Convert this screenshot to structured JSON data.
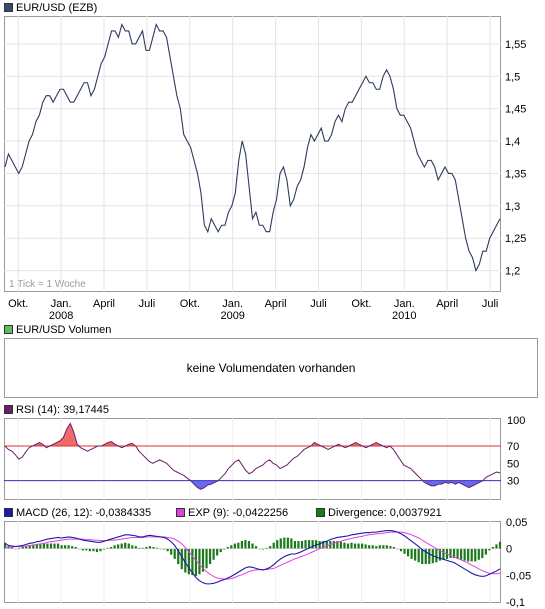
{
  "price_panel": {
    "legend": "EUR/USD (EZB)",
    "legend_color": "#3c4a6b",
    "line_color": "#2e3b5e",
    "tick_note": "1 Tick = 1 Woche"
  },
  "volume_panel": {
    "legend": "EUR/USD Volumen",
    "legend_color": "#5fbf5f",
    "message": "keine Volumendaten vorhanden"
  },
  "rsi_panel": {
    "legend": "RSI (14): 39,17445",
    "legend_color": "#6a1f6a"
  },
  "macd_panel": {
    "macd_label": "MACD (26, 12): -0,0384335",
    "macd_color": "#1a1aa8",
    "exp_label": "EXP (9): -0,0422256",
    "exp_color": "#e040e0",
    "div_label": "Divergence: 0,0037921",
    "div_color": "#1a7a1a"
  },
  "chart_data": [
    {
      "type": "line",
      "title": "EUR/USD (EZB)",
      "ylim": [
        1.17,
        1.59
      ],
      "yticks": [
        {
          "label": "1,55",
          "v": 1.55
        },
        {
          "label": "1,5",
          "v": 1.5
        },
        {
          "label": "1,45",
          "v": 1.45
        },
        {
          "label": "1,4",
          "v": 1.4
        },
        {
          "label": "1,35",
          "v": 1.35
        },
        {
          "label": "1,3",
          "v": 1.3
        },
        {
          "label": "1,25",
          "v": 1.25
        },
        {
          "label": "1,2",
          "v": 1.2
        }
      ],
      "xticks": [
        {
          "label": "Okt.",
          "w": 4
        },
        {
          "label": "Jan.",
          "w": 17,
          "sub": "2008"
        },
        {
          "label": "April",
          "w": 30
        },
        {
          "label": "Juli",
          "w": 43
        },
        {
          "label": "Okt.",
          "w": 56
        },
        {
          "label": "Jan.",
          "w": 69,
          "sub": "2009"
        },
        {
          "label": "April",
          "w": 82
        },
        {
          "label": "Juli",
          "w": 95
        },
        {
          "label": "Okt.",
          "w": 108
        },
        {
          "label": "Jan.",
          "w": 121,
          "sub": "2010"
        },
        {
          "label": "April",
          "w": 134
        },
        {
          "label": "Juli",
          "w": 147
        }
      ],
      "weeks": 150,
      "series": [
        {
          "values": [
            1.36,
            1.38,
            1.37,
            1.36,
            1.35,
            1.36,
            1.38,
            1.4,
            1.41,
            1.43,
            1.44,
            1.46,
            1.47,
            1.47,
            1.46,
            1.47,
            1.48,
            1.48,
            1.47,
            1.46,
            1.46,
            1.47,
            1.48,
            1.49,
            1.49,
            1.47,
            1.48,
            1.5,
            1.52,
            1.53,
            1.55,
            1.57,
            1.57,
            1.56,
            1.58,
            1.57,
            1.57,
            1.55,
            1.55,
            1.56,
            1.57,
            1.54,
            1.54,
            1.56,
            1.58,
            1.57,
            1.57,
            1.56,
            1.53,
            1.5,
            1.47,
            1.45,
            1.41,
            1.4,
            1.39,
            1.37,
            1.35,
            1.32,
            1.27,
            1.26,
            1.28,
            1.27,
            1.26,
            1.27,
            1.27,
            1.29,
            1.3,
            1.32,
            1.37,
            1.4,
            1.38,
            1.33,
            1.28,
            1.29,
            1.27,
            1.27,
            1.26,
            1.26,
            1.29,
            1.31,
            1.35,
            1.36,
            1.34,
            1.3,
            1.31,
            1.33,
            1.34,
            1.36,
            1.39,
            1.41,
            1.4,
            1.41,
            1.42,
            1.4,
            1.4,
            1.41,
            1.43,
            1.44,
            1.43,
            1.45,
            1.46,
            1.46,
            1.47,
            1.48,
            1.49,
            1.5,
            1.49,
            1.49,
            1.48,
            1.48,
            1.5,
            1.51,
            1.5,
            1.48,
            1.45,
            1.44,
            1.44,
            1.43,
            1.42,
            1.4,
            1.38,
            1.37,
            1.36,
            1.37,
            1.37,
            1.36,
            1.34,
            1.35,
            1.36,
            1.35,
            1.35,
            1.34,
            1.31,
            1.28,
            1.25,
            1.23,
            1.22,
            1.2,
            1.21,
            1.23,
            1.23,
            1.25,
            1.26,
            1.27,
            1.28
          ]
        }
      ]
    },
    {
      "type": "line",
      "title": "RSI (14): 39,17445",
      "ylim": [
        10,
        100
      ],
      "yticks": [
        {
          "label": "100",
          "v": 100
        },
        {
          "label": "70",
          "v": 70,
          "color": "#e03030"
        },
        {
          "label": "50",
          "v": 50
        },
        {
          "label": "30",
          "v": 30,
          "color": "#3030c0"
        }
      ],
      "levels": {
        "upper": 70,
        "lower": 30
      },
      "series": [
        {
          "values": [
            70,
            66,
            64,
            60,
            55,
            57,
            63,
            68,
            70,
            72,
            74,
            72,
            68,
            70,
            72,
            74,
            76,
            80,
            90,
            96,
            86,
            72,
            68,
            66,
            64,
            66,
            68,
            70,
            70,
            72,
            74,
            75,
            72,
            70,
            68,
            70,
            72,
            73,
            70,
            64,
            60,
            56,
            52,
            50,
            52,
            54,
            52,
            50,
            46,
            42,
            40,
            38,
            36,
            33,
            30,
            26,
            22,
            20,
            22,
            25,
            26,
            28,
            30,
            34,
            38,
            44,
            48,
            52,
            54,
            48,
            42,
            38,
            40,
            44,
            46,
            48,
            52,
            54,
            50,
            48,
            44,
            46,
            48,
            52,
            56,
            58,
            62,
            66,
            68,
            70,
            74,
            72,
            70,
            68,
            66,
            68,
            70,
            72,
            70,
            68,
            70,
            72,
            74,
            72,
            70,
            68,
            70,
            72,
            74,
            72,
            70,
            68,
            70,
            66,
            60,
            54,
            48,
            46,
            44,
            40,
            36,
            32,
            28,
            26,
            24,
            24,
            26,
            26,
            28,
            27,
            28,
            26,
            28,
            26,
            24,
            22,
            24,
            26,
            28,
            30,
            34,
            36,
            38,
            40,
            39
          ]
        }
      ]
    },
    {
      "type": "line",
      "title": "MACD (26, 12)",
      "ylim": [
        -0.1,
        0.05
      ],
      "yticks": [
        {
          "label": "0,05",
          "v": 0.05
        },
        {
          "label": "0",
          "v": 0
        },
        {
          "label": "-0,05",
          "v": -0.05
        },
        {
          "label": "-0,1",
          "v": -0.1
        }
      ],
      "series": [
        {
          "name": "MACD (26, 12)",
          "values": [
            0.01,
            0.006,
            0.005,
            0.004,
            0.005,
            0.006,
            0.008,
            0.01,
            0.011,
            0.013,
            0.014,
            0.016,
            0.018,
            0.019,
            0.02,
            0.021,
            0.02,
            0.021,
            0.022,
            0.021,
            0.02,
            0.018,
            0.016,
            0.015,
            0.014,
            0.013,
            0.012,
            0.012,
            0.014,
            0.016,
            0.018,
            0.02,
            0.022,
            0.024,
            0.026,
            0.026,
            0.025,
            0.024,
            0.022,
            0.022,
            0.024,
            0.025,
            0.024,
            0.023,
            0.022,
            0.021,
            0.018,
            0.013,
            0.006,
            -0.004,
            -0.015,
            -0.026,
            -0.036,
            -0.045,
            -0.054,
            -0.06,
            -0.064,
            -0.066,
            -0.066,
            -0.065,
            -0.063,
            -0.06,
            -0.058,
            -0.055,
            -0.052,
            -0.048,
            -0.044,
            -0.04,
            -0.036,
            -0.034,
            -0.035,
            -0.037,
            -0.039,
            -0.04,
            -0.038,
            -0.035,
            -0.03,
            -0.024,
            -0.019,
            -0.015,
            -0.012,
            -0.01,
            -0.01,
            -0.008,
            -0.005,
            -0.002,
            0.001,
            0.004,
            0.007,
            0.009,
            0.012,
            0.014,
            0.017,
            0.019,
            0.021,
            0.022,
            0.023,
            0.024,
            0.026,
            0.027,
            0.028,
            0.029,
            0.03,
            0.03,
            0.031,
            0.031,
            0.032,
            0.033,
            0.034,
            0.034,
            0.033,
            0.031,
            0.028,
            0.024,
            0.019,
            0.014,
            0.009,
            0.004,
            -0.002,
            -0.006,
            -0.01,
            -0.013,
            -0.016,
            -0.018,
            -0.02,
            -0.022,
            -0.024,
            -0.026,
            -0.03,
            -0.034,
            -0.038,
            -0.042,
            -0.046,
            -0.049,
            -0.051,
            -0.052,
            -0.051,
            -0.048,
            -0.045,
            -0.042,
            -0.038
          ]
        },
        {
          "name": "EXP (9)",
          "values": [
            0.003,
            0.003,
            0.003,
            0.004,
            0.004,
            0.004,
            0.005,
            0.006,
            0.007,
            0.008,
            0.009,
            0.01,
            0.012,
            0.013,
            0.014,
            0.015,
            0.016,
            0.017,
            0.018,
            0.018,
            0.018,
            0.018,
            0.018,
            0.017,
            0.017,
            0.016,
            0.016,
            0.015,
            0.015,
            0.015,
            0.016,
            0.016,
            0.017,
            0.018,
            0.019,
            0.02,
            0.021,
            0.021,
            0.021,
            0.021,
            0.022,
            0.022,
            0.022,
            0.022,
            0.022,
            0.022,
            0.021,
            0.02,
            0.018,
            0.014,
            0.009,
            0.002,
            -0.006,
            -0.014,
            -0.022,
            -0.03,
            -0.037,
            -0.043,
            -0.048,
            -0.052,
            -0.055,
            -0.056,
            -0.057,
            -0.057,
            -0.056,
            -0.054,
            -0.051,
            -0.049,
            -0.046,
            -0.043,
            -0.041,
            -0.04,
            -0.039,
            -0.039,
            -0.039,
            -0.038,
            -0.037,
            -0.034,
            -0.031,
            -0.028,
            -0.025,
            -0.022,
            -0.019,
            -0.017,
            -0.014,
            -0.012,
            -0.009,
            -0.006,
            -0.003,
            0,
            0.003,
            0.005,
            0.008,
            0.01,
            0.012,
            0.014,
            0.016,
            0.018,
            0.019,
            0.021,
            0.022,
            0.023,
            0.025,
            0.026,
            0.027,
            0.028,
            0.028,
            0.029,
            0.03,
            0.031,
            0.031,
            0.031,
            0.031,
            0.03,
            0.028,
            0.026,
            0.023,
            0.02,
            0.016,
            0.012,
            0.008,
            0.004,
            0,
            -0.004,
            -0.007,
            -0.01,
            -0.013,
            -0.015,
            -0.018,
            -0.021,
            -0.024,
            -0.027,
            -0.031,
            -0.034,
            -0.038,
            -0.041,
            -0.044,
            -0.046,
            -0.047,
            -0.047,
            -0.046
          ]
        }
      ],
      "divergence_color_pos": "#1a8a1a"
    }
  ]
}
